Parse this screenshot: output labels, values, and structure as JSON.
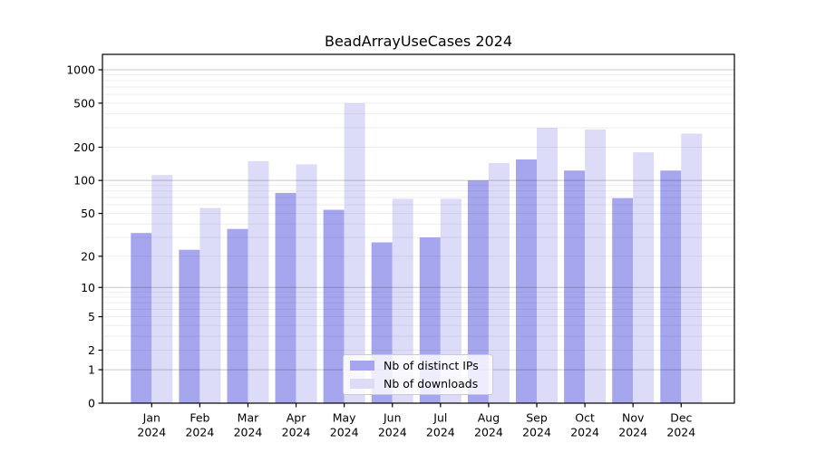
{
  "chart_data": {
    "type": "bar",
    "title": "BeadArrayUseCases 2024",
    "categories": [
      "Jan",
      "Feb",
      "Mar",
      "Apr",
      "May",
      "Jun",
      "Jul",
      "Aug",
      "Sep",
      "Oct",
      "Nov",
      "Dec"
    ],
    "year_label": "2024",
    "series": [
      {
        "key": "distinct-ips",
        "name": "Nb of distinct IPs",
        "color": "#a6a6ef",
        "values": [
          33,
          23,
          36,
          77,
          54,
          27,
          30,
          100,
          155,
          123,
          69,
          123
        ]
      },
      {
        "key": "downloads",
        "name": "Nb of downloads",
        "color": "#dcdcf8",
        "values": [
          112,
          56,
          150,
          140,
          500,
          68,
          68,
          144,
          300,
          290,
          180,
          265
        ]
      }
    ],
    "yscale": "log1p",
    "yticks": [
      0,
      1,
      2,
      5,
      10,
      20,
      50,
      100,
      200,
      500,
      1000
    ],
    "ylim": [
      0,
      1150
    ],
    "xlabel": "",
    "ylabel": "",
    "grid": "minor-and-major-horizontal",
    "legend_position": "lower center",
    "colors": {
      "major_gridline": "rgba(0,0,0,0.22)",
      "minor_gridline": "rgba(0,0,0,0.065)",
      "axis_frame": "#000000",
      "background": "#ffffff"
    }
  }
}
